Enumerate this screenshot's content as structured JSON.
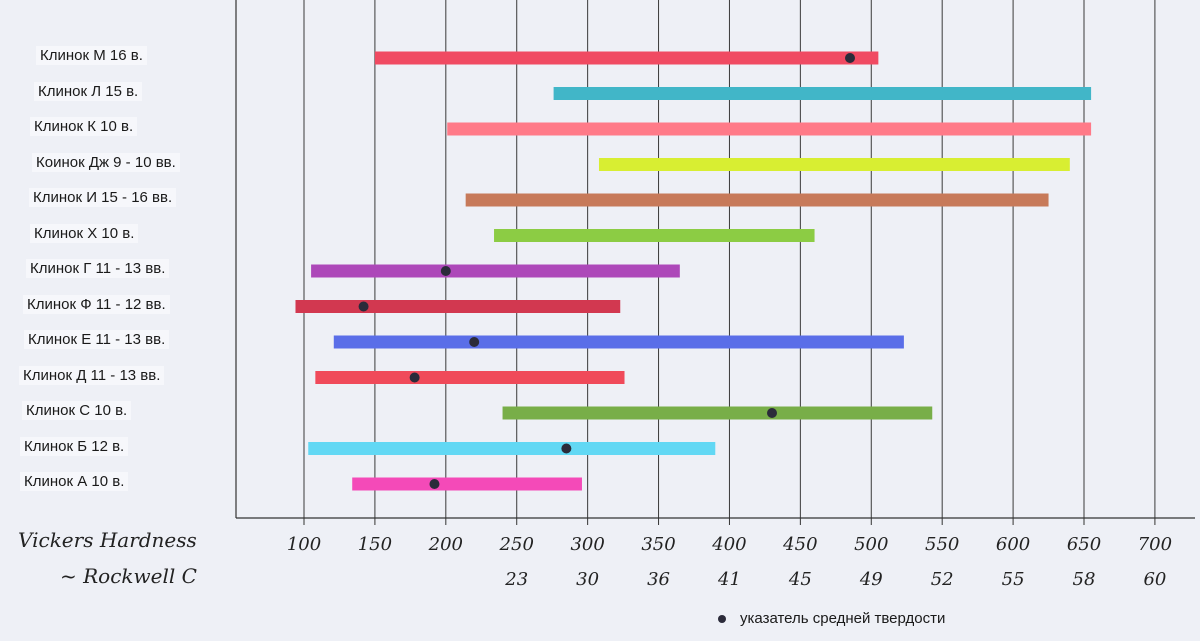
{
  "chart_data": {
    "type": "range-bar",
    "xlabel": "Vickers Hardness",
    "xlabel2": "~ Rockwell C",
    "x_ticks": [
      100,
      150,
      200,
      250,
      300,
      350,
      400,
      450,
      500,
      550,
      600,
      650,
      700
    ],
    "rockwell_ticks": [
      {
        "hv": 250,
        "label": "23"
      },
      {
        "hv": 300,
        "label": "30"
      },
      {
        "hv": 350,
        "label": "36"
      },
      {
        "hv": 400,
        "label": "41"
      },
      {
        "hv": 450,
        "label": "45"
      },
      {
        "hv": 500,
        "label": "49"
      },
      {
        "hv": 550,
        "label": "52"
      },
      {
        "hv": 600,
        "label": "55"
      },
      {
        "hv": 650,
        "label": "58"
      },
      {
        "hv": 700,
        "label": "60"
      }
    ],
    "xlim": [
      80,
      715
    ],
    "grid": true,
    "legend": {
      "position": "bottom-right",
      "label": "указатель средней твердости"
    },
    "series": [
      {
        "name": "Клинок М 16 в.",
        "min": 150,
        "max": 505,
        "mean": 485,
        "color": "#f04a62"
      },
      {
        "name": "Клинок Л 15 в.",
        "min": 276,
        "max": 655,
        "mean": null,
        "color": "#41b6c8"
      },
      {
        "name": "Клинок К 10 в.",
        "min": 201,
        "max": 655,
        "mean": null,
        "color": "#ff7a88"
      },
      {
        "name": "Коинок Дж 9 - 10 вв.",
        "min": 308,
        "max": 640,
        "mean": null,
        "color": "#d8ee32"
      },
      {
        "name": "Клинок И 15 - 16 вв.",
        "min": 214,
        "max": 625,
        "mean": null,
        "color": "#c77a5a"
      },
      {
        "name": "Клинок Х 10 в.",
        "min": 234,
        "max": 460,
        "mean": null,
        "color": "#8ccc44"
      },
      {
        "name": "Клинок Г 11 - 13 вв.",
        "min": 105,
        "max": 365,
        "mean": 200,
        "color": "#ad48b9"
      },
      {
        "name": "Клинок Ф 11 - 12 вв.",
        "min": 94,
        "max": 323,
        "mean": 142,
        "color": "#d23850"
      },
      {
        "name": "Клинок Е 11 - 13 вв.",
        "min": 121,
        "max": 523,
        "mean": 220,
        "color": "#5a6ee8"
      },
      {
        "name": "Клинок Д 11 - 13 вв.",
        "min": 108,
        "max": 326,
        "mean": 178,
        "color": "#f04a5a"
      },
      {
        "name": "Клинок С 10 в.",
        "min": 240,
        "max": 543,
        "mean": 430,
        "color": "#78ae48"
      },
      {
        "name": "Клинок Б 12 в.",
        "min": 103,
        "max": 390,
        "mean": 285,
        "color": "#62d8f4"
      },
      {
        "name": "Клинок А 10 в.",
        "min": 134,
        "max": 296,
        "mean": 192,
        "color": "#f44ab8"
      }
    ],
    "mean_marker_color": "#2b2b3a"
  }
}
